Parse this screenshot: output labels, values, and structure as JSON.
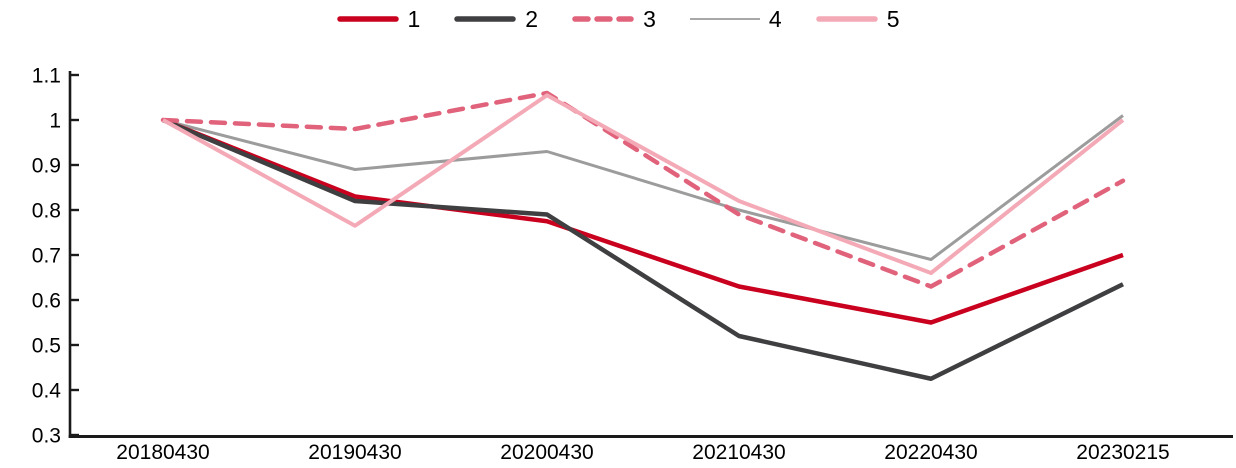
{
  "chart_data": {
    "type": "line",
    "title": "",
    "xlabel": "",
    "ylabel": "",
    "categories": [
      "20180430",
      "20190430",
      "20200430",
      "20210430",
      "20220430",
      "20230215"
    ],
    "series": [
      {
        "name": "1",
        "color": "#C9001E",
        "style": "solid",
        "line_width": 4.5,
        "values": [
          1.0,
          0.83,
          0.775,
          0.63,
          0.55,
          0.7
        ]
      },
      {
        "name": "2",
        "color": "#3F3F41",
        "style": "solid",
        "line_width": 4.5,
        "values": [
          1.0,
          0.82,
          0.79,
          0.52,
          0.425,
          0.635
        ]
      },
      {
        "name": "3",
        "color": "#E0627B",
        "style": "dashed",
        "line_width": 4.5,
        "values": [
          1.0,
          0.98,
          1.06,
          0.79,
          0.63,
          0.865
        ]
      },
      {
        "name": "4",
        "color": "#9C9C9C",
        "style": "solid",
        "line_width": 3,
        "values": [
          1.0,
          0.89,
          0.93,
          0.8,
          0.69,
          1.01
        ]
      },
      {
        "name": "5",
        "color": "#F4A9B6",
        "style": "solid",
        "line_width": 4,
        "values": [
          1.0,
          0.765,
          1.055,
          0.82,
          0.66,
          1.0
        ]
      }
    ],
    "ylim": [
      0.3,
      1.1
    ],
    "ytick_labels": [
      "0.3",
      "0.4",
      "0.5",
      "0.6",
      "0.7",
      "0.8",
      "0.9",
      "1",
      "1.1"
    ],
    "grid": false,
    "legend_position": "top",
    "axis_color": "#1A1A1A",
    "text_color": "#000000"
  }
}
